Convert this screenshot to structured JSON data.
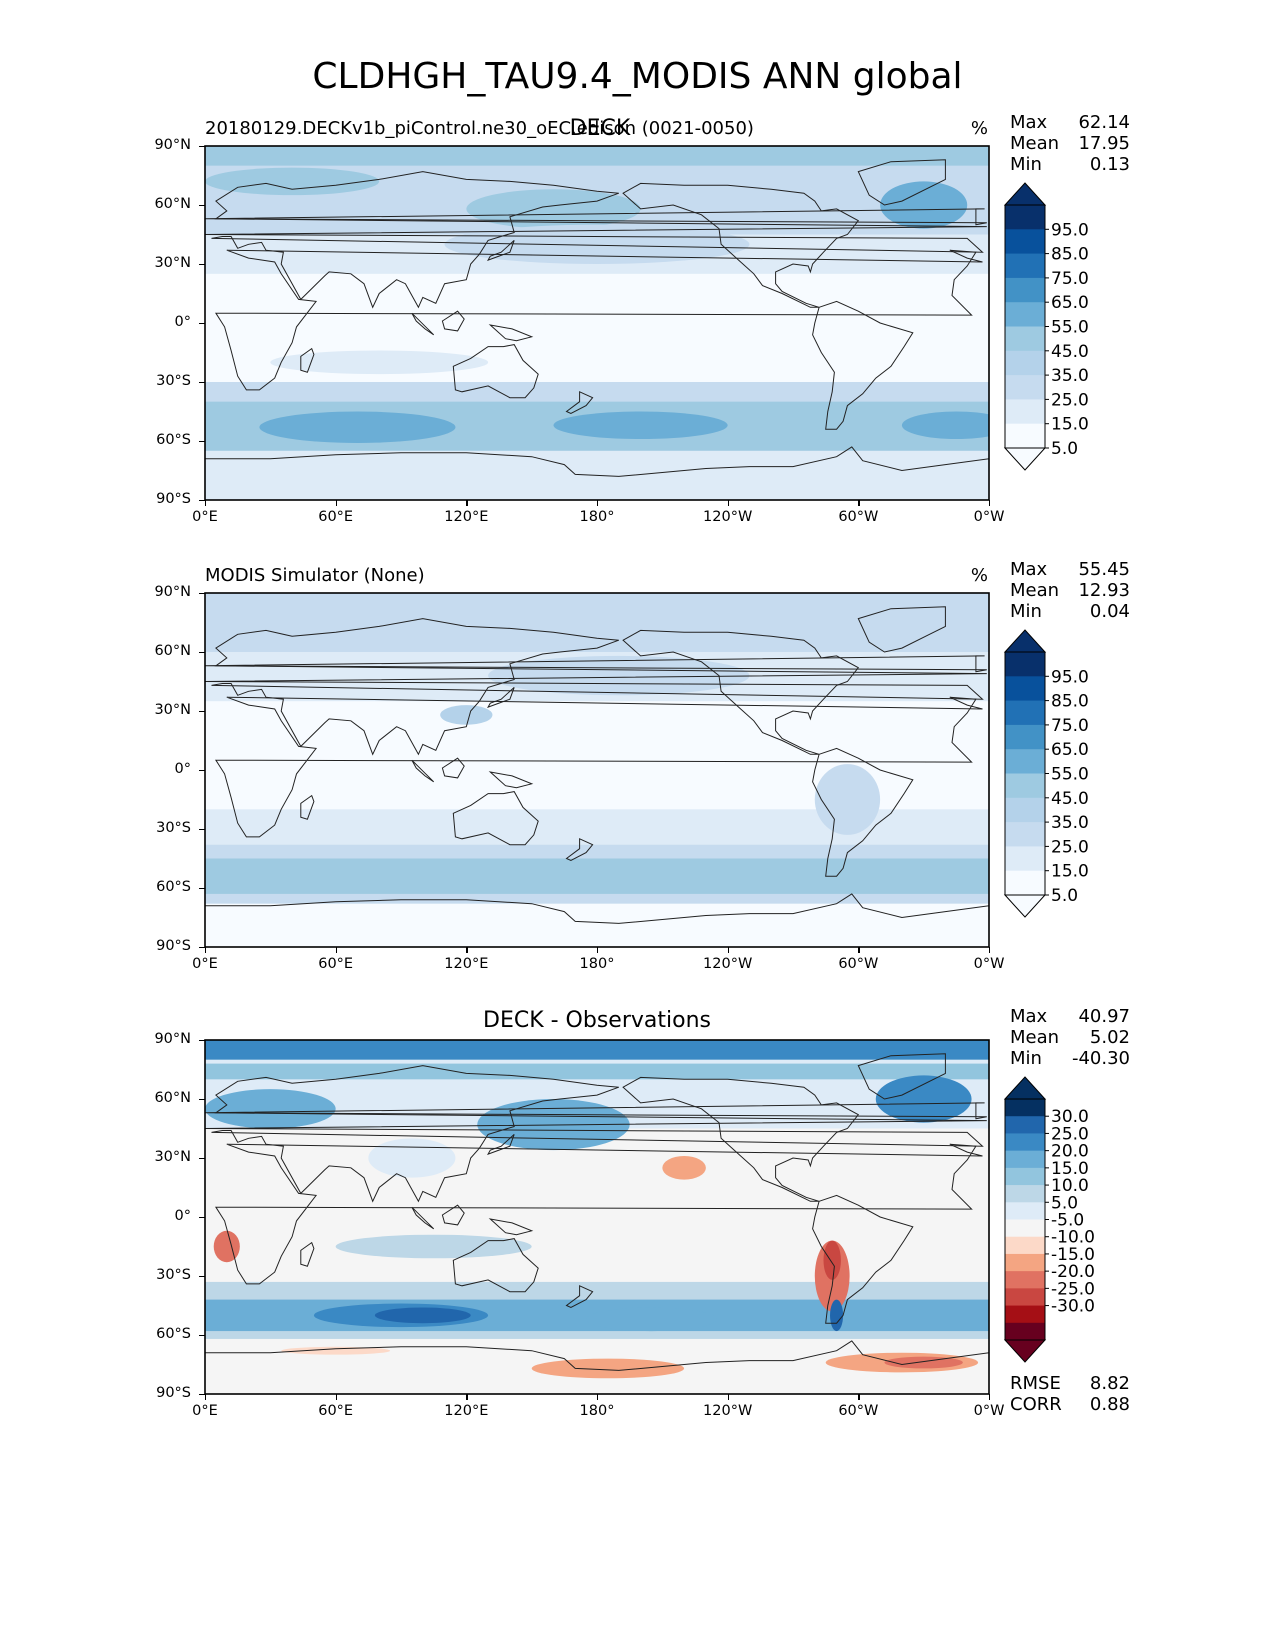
{
  "title": "CLDHGH_TAU9.4_MODIS ANN global",
  "colors": {
    "blues": [
      "#f7fbff",
      "#deebf7",
      "#c6dbef",
      "#b4d2ea",
      "#9ecae1",
      "#6baed6",
      "#4292c6",
      "#2171b5",
      "#08519c",
      "#08306b"
    ],
    "diff": [
      "#67001f",
      "#a50f15",
      "#c94741",
      "#e07262",
      "#f4a582",
      "#fcd9c8",
      "#f5f5f5",
      "#deebf7",
      "#bdd7e7",
      "#92c5de",
      "#6baed6",
      "#3a89c4",
      "#2166ac",
      "#053061"
    ],
    "coast": "#222222"
  },
  "panels": [
    {
      "id": "test",
      "title": "DECK",
      "subtitle": "20180129.DECKv1b_piControl.ne30_oEC.edison (0021-0050)",
      "units": "%",
      "stats": {
        "max_label": "Max",
        "max": "62.14",
        "mean_label": "Mean",
        "mean": "17.95",
        "min_label": "Min",
        "min": "0.13"
      },
      "colorbar": {
        "levels": [
          "95.0",
          "85.0",
          "75.0",
          "65.0",
          "55.0",
          "45.0",
          "35.0",
          "25.0",
          "15.0",
          "5.0"
        ]
      }
    },
    {
      "id": "ref",
      "title": "",
      "subtitle": "MODIS Simulator (None)",
      "units": "%",
      "stats": {
        "max_label": "Max",
        "max": "55.45",
        "mean_label": "Mean",
        "mean": "12.93",
        "min_label": "Min",
        "min": "0.04"
      },
      "colorbar": {
        "levels": [
          "95.0",
          "85.0",
          "75.0",
          "65.0",
          "55.0",
          "45.0",
          "35.0",
          "25.0",
          "15.0",
          "5.0"
        ]
      }
    },
    {
      "id": "diff",
      "title": "DECK - Observations",
      "subtitle": "",
      "units": "",
      "stats": {
        "max_label": "Max",
        "max": "40.97",
        "mean_label": "Mean",
        "mean": "5.02",
        "min_label": "Min",
        "min": "-40.30"
      },
      "colorbar": {
        "levels": [
          "30.0",
          "25.0",
          "20.0",
          "15.0",
          "10.0",
          "5.0",
          "-5.0",
          "-10.0",
          "-15.0",
          "-20.0",
          "-25.0",
          "-30.0"
        ]
      },
      "metrics": {
        "rmse_label": "RMSE",
        "rmse": "8.82",
        "corr_label": "CORR",
        "corr": "0.88"
      }
    }
  ],
  "axes": {
    "lat_ticks": [
      "90°N",
      "60°N",
      "30°N",
      "0°",
      "30°S",
      "60°S",
      "90°S"
    ],
    "lon_ticks": [
      "0°E",
      "60°E",
      "120°E",
      "180°",
      "120°W",
      "60°W",
      "0°W"
    ]
  }
}
